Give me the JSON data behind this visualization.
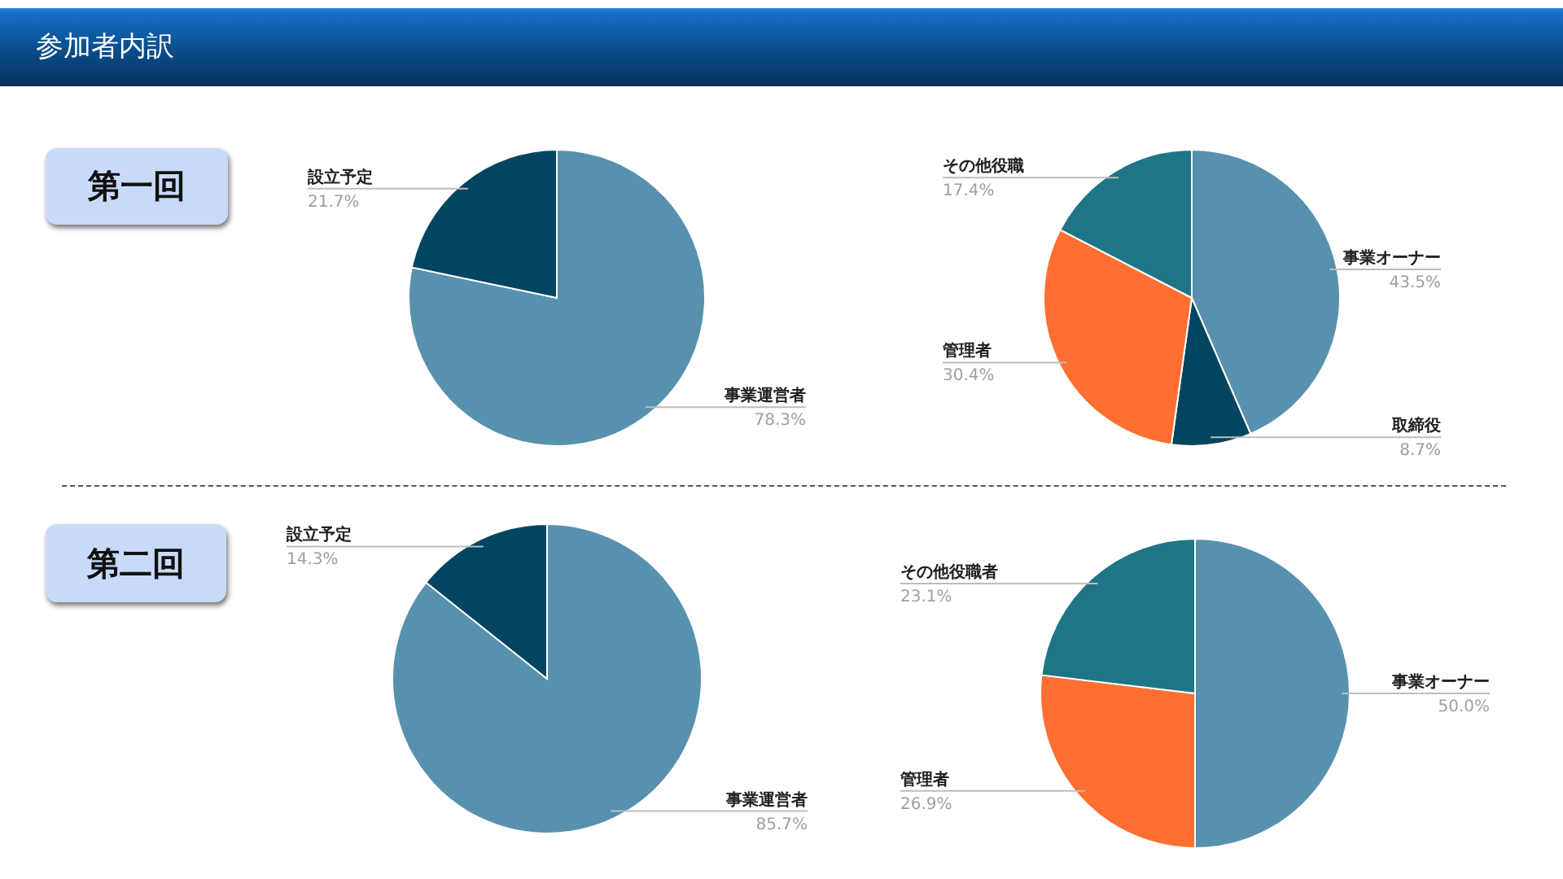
{
  "chart_data": [
    {
      "type": "other",
      "title": "参加者内訳"
    },
    {
      "type": "pie",
      "title": "第一回",
      "categories": [
        "事業運営者",
        "設立予定"
      ],
      "values": [
        78.3,
        21.7
      ],
      "colors": [
        "#5891ad",
        "#024560"
      ],
      "value_labels": [
        "78.3%",
        "21.7%"
      ]
    },
    {
      "type": "pie",
      "categories": [
        "事業オーナー",
        "取締役",
        "管理者",
        "その他役職"
      ],
      "values": [
        43.5,
        8.7,
        30.4,
        17.4
      ],
      "colors": [
        "#5891ad",
        "#024560",
        "#ff6f31",
        "#1f7585"
      ],
      "value_labels": [
        "43.5%",
        "8.7%",
        "30.4%",
        "17.4%"
      ]
    },
    {
      "type": "pie",
      "title": "第二回",
      "categories": [
        "事業運営者",
        "設立予定"
      ],
      "values": [
        85.7,
        14.3
      ],
      "colors": [
        "#5891ad",
        "#024560"
      ],
      "value_labels": [
        "85.7%",
        "14.3%"
      ]
    },
    {
      "type": "pie",
      "categories": [
        "事業オーナー",
        "管理者",
        "その他役職者"
      ],
      "values": [
        50.0,
        26.9,
        23.1
      ],
      "colors": [
        "#5891ad",
        "#ff6f31",
        "#1f7585"
      ],
      "value_labels": [
        "50.0%",
        "26.9%",
        "23.1%"
      ]
    }
  ]
}
